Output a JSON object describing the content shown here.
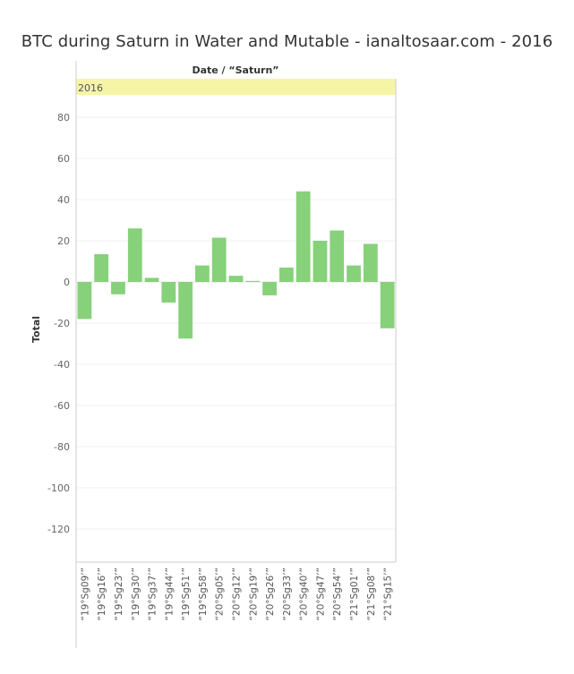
{
  "title": "BTC during Saturn in Water and Mutable - ianaltosaar.com - 2016",
  "chart_data": {
    "type": "bar",
    "column_header": "Date / “Saturn”",
    "panel_label": "2016",
    "ylabel": "Total",
    "xlabel": "",
    "ylim": [
      -137,
      90
    ],
    "yticks": [
      80,
      60,
      40,
      20,
      0,
      -20,
      -40,
      -60,
      -80,
      -100,
      -120
    ],
    "categories": [
      "“19°Sg09’”",
      "“19°Sg16’”",
      "“19°Sg23’”",
      "“19°Sg30’”",
      "“19°Sg37’”",
      "“19°Sg44’”",
      "“19°Sg51’”",
      "“19°Sg58’”",
      "“20°Sg05’”",
      "“20°Sg12’”",
      "“20°Sg19’”",
      "“20°Sg26’”",
      "“20°Sg33’”",
      "“20°Sg40’”",
      "“20°Sg47’”",
      "“20°Sg54’”",
      "“21°Sg01’”",
      "“21°Sg08’”",
      "“21°Sg15’”"
    ],
    "values": [
      -18,
      13.5,
      -6,
      26,
      2,
      -10,
      -27.5,
      8,
      21.5,
      3,
      0.5,
      -6.5,
      7,
      44,
      20,
      25,
      8,
      18.5,
      -22.5
    ],
    "bar_color": "#86d17a",
    "band_color": "#f6f4a6",
    "grid": true
  }
}
